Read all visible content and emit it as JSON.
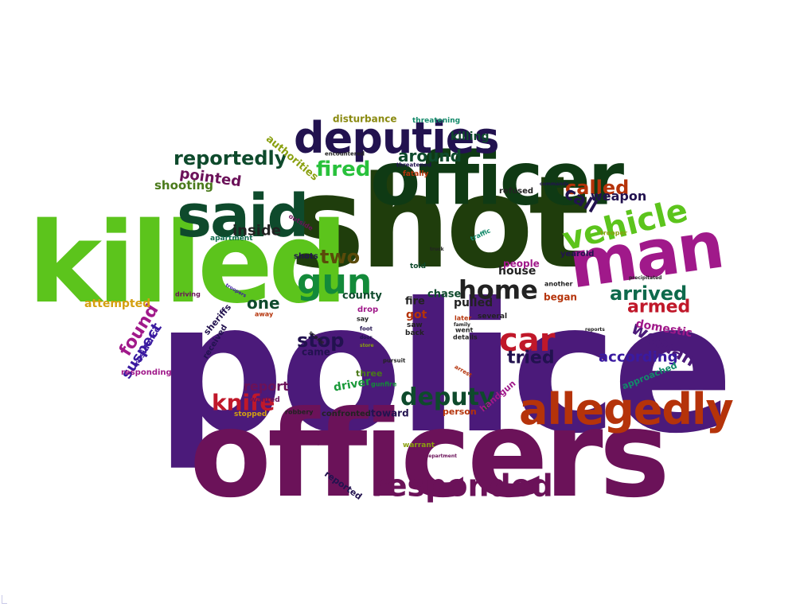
{
  "title": "",
  "colors": {
    "background": "#ffffff",
    "purple": "#4b1a7a",
    "plum": "#6b1259",
    "dark_green": "#1f3d0c",
    "forest": "#0e4a2c",
    "lime": "#5cc41c",
    "magenta": "#a0198a",
    "rust": "#b5330a",
    "navy": "#22124f",
    "teal": "#138a6a"
  },
  "words": [
    {
      "text": "police",
      "color": "#4b1a7a"
    },
    {
      "text": "officers",
      "color": "#6b1259"
    },
    {
      "text": "shot",
      "color": "#1f3d0c"
    },
    {
      "text": "killed",
      "color": "#5cc41c"
    },
    {
      "text": "officer",
      "color": "#0f3a14"
    },
    {
      "text": "man",
      "color": "#a0198a"
    },
    {
      "text": "said",
      "color": "#0e4a2c"
    },
    {
      "text": "deputies",
      "color": "#22124f"
    },
    {
      "text": "allegedly",
      "color": "#b5330a"
    },
    {
      "text": "vehicle",
      "color": "#5cc41c"
    },
    {
      "text": "responded",
      "color": "#6b1259"
    },
    {
      "text": "car",
      "color": "#c0182a"
    },
    {
      "text": "home",
      "color": "#222222"
    },
    {
      "text": "gun",
      "color": "#138a3a"
    },
    {
      "text": "deputy",
      "color": "#0e4a2c"
    },
    {
      "text": "reportedly",
      "color": "#0e4a2c"
    },
    {
      "text": "knife",
      "color": "#c0182a"
    },
    {
      "text": "fired",
      "color": "#29c13c"
    },
    {
      "text": "called",
      "color": "#b5330a"
    },
    {
      "text": "arrived",
      "color": "#0e6a4c"
    },
    {
      "text": "armed",
      "color": "#c0182a"
    },
    {
      "text": "woman",
      "color": "#4b1a7a"
    },
    {
      "text": "two",
      "color": "#5a4a0a"
    },
    {
      "text": "found",
      "color": "#a0198a"
    },
    {
      "text": "stop",
      "color": "#22124f"
    },
    {
      "text": "tried",
      "color": "#22124f"
    },
    {
      "text": "according",
      "color": "#3a1aa0"
    },
    {
      "text": "call",
      "color": "#22124f"
    },
    {
      "text": "weapon",
      "color": "#22124f"
    },
    {
      "text": "one",
      "color": "#0e4a2c"
    },
    {
      "text": "around",
      "color": "#0e4a2c"
    },
    {
      "text": "inside",
      "color": "#222222"
    },
    {
      "text": "suspect",
      "color": "#3a1aa0"
    },
    {
      "text": "pointed",
      "color": "#6b1259"
    },
    {
      "text": "shooting",
      "color": "#4a7a1a"
    },
    {
      "text": "killing",
      "color": "#0e4a2c"
    },
    {
      "text": "report",
      "color": "#6b1259"
    },
    {
      "text": "domestic",
      "color": "#a0198a"
    },
    {
      "text": "attempted",
      "color": "#d4a010"
    },
    {
      "text": "authorities",
      "color": "#8aa010"
    },
    {
      "text": "disturbance",
      "color": "#8a8a10"
    },
    {
      "text": "threatening",
      "color": "#138a6a"
    },
    {
      "text": "county",
      "color": "#0e4a2c"
    },
    {
      "text": "house",
      "color": "#222222"
    },
    {
      "text": "pulled",
      "color": "#222222"
    },
    {
      "text": "chase",
      "color": "#0e4a2c"
    },
    {
      "text": "people",
      "color": "#a0198a"
    },
    {
      "text": "began",
      "color": "#b5330a"
    },
    {
      "text": "fire",
      "color": "#222222"
    },
    {
      "text": "got",
      "color": "#b5330a"
    },
    {
      "text": "came",
      "color": "#22124f"
    },
    {
      "text": "sheriffs",
      "color": "#22124f"
    },
    {
      "text": "received",
      "color": "#22124f"
    },
    {
      "text": "residence",
      "color": "#3a1aa0"
    },
    {
      "text": "responding",
      "color": "#a0198a"
    },
    {
      "text": "driver",
      "color": "#1a9a3a"
    },
    {
      "text": "three",
      "color": "#4a7a1a"
    },
    {
      "text": "toward",
      "color": "#22124f"
    },
    {
      "text": "confronted",
      "color": "#222222"
    },
    {
      "text": "stopped",
      "color": "#d4a010"
    },
    {
      "text": "robbery",
      "color": "#222222"
    },
    {
      "text": "person",
      "color": "#b5330a"
    },
    {
      "text": "handgun",
      "color": "#a0198a"
    },
    {
      "text": "approached",
      "color": "#138a6a"
    },
    {
      "text": "reported",
      "color": "#22124f"
    },
    {
      "text": "wanted",
      "color": "#6b1259"
    },
    {
      "text": "warrant",
      "color": "#8aa010"
    },
    {
      "text": "saw",
      "color": "#222222"
    },
    {
      "text": "back",
      "color": "#222222"
    },
    {
      "text": "told",
      "color": "#0e4a2c"
    },
    {
      "text": "shots",
      "color": "#22124f"
    },
    {
      "text": "apartment",
      "color": "#0e6a4c"
    },
    {
      "text": "trooper",
      "color": "#8aa010"
    },
    {
      "text": "yearold",
      "color": "#22124f"
    },
    {
      "text": "refused",
      "color": "#222222"
    },
    {
      "text": "encountered",
      "color": "#222222"
    },
    {
      "text": "threatened",
      "color": "#22124f"
    },
    {
      "text": "fatally",
      "color": "#b5330a"
    },
    {
      "text": "commands",
      "color": "#22124f"
    },
    {
      "text": "later",
      "color": "#b5330a"
    },
    {
      "text": "several",
      "color": "#222222"
    },
    {
      "text": "details",
      "color": "#222222"
    },
    {
      "text": "went",
      "color": "#222222"
    },
    {
      "text": "another",
      "color": "#222222"
    },
    {
      "text": "say",
      "color": "#222222"
    },
    {
      "text": "drop",
      "color": "#a0198a"
    },
    {
      "text": "away",
      "color": "#b5330a"
    },
    {
      "text": "scene",
      "color": "#222222"
    },
    {
      "text": "gunfire",
      "color": "#138a3a"
    },
    {
      "text": "traffic",
      "color": "#138a6a"
    },
    {
      "text": "pursuit",
      "color": "#222222"
    },
    {
      "text": "arrest",
      "color": "#b5330a"
    },
    {
      "text": "family",
      "color": "#222222"
    },
    {
      "text": "driving",
      "color": "#6b1259"
    },
    {
      "text": "outside",
      "color": "#6b1259"
    },
    {
      "text": "precipitated",
      "color": "#222222"
    },
    {
      "text": "reports",
      "color": "#222222"
    },
    {
      "text": "foot",
      "color": "#22124f"
    },
    {
      "text": "store",
      "color": "#8aa010"
    },
    {
      "text": "door",
      "color": "#22124f"
    },
    {
      "text": "department",
      "color": "#6b1259"
    },
    {
      "text": "truck",
      "color": "#222222"
    },
    {
      "text": "troopers",
      "color": "#3a1aa0"
    }
  ]
}
